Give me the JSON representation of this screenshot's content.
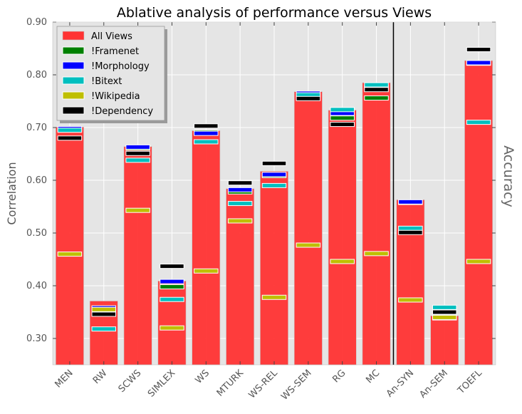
{
  "chart_data": {
    "type": "bar",
    "title": "Ablative analysis of performance versus Views",
    "ylabel": "Correlation",
    "ylabel_right": "Accuracy",
    "xlabel": "",
    "ylim": [
      0.25,
      0.9
    ],
    "yticks": [
      0.3,
      0.4,
      0.5,
      0.6,
      0.7,
      0.8,
      0.9
    ],
    "ytick_labels": [
      "0.30",
      "0.40",
      "0.50",
      "0.60",
      "0.70",
      "0.80",
      "0.90"
    ],
    "grid": true,
    "legend_position": "top-left",
    "separator_after": "MC",
    "categories": [
      "MEN",
      "RW",
      "SCWS",
      "SIMLEX",
      "WS",
      "MTURK",
      "WS-REL",
      "WS-SEM",
      "RG",
      "MC",
      "An-SYN",
      "An-SEM",
      "TOEFL"
    ],
    "bar_series": {
      "name": "All Views",
      "color": "#ff3333",
      "values": [
        0.701,
        0.371,
        0.664,
        0.409,
        0.694,
        0.584,
        0.617,
        0.768,
        0.733,
        0.785,
        0.563,
        0.343,
        0.827
      ]
    },
    "marker_series": [
      {
        "name": "!Framenet",
        "color": "#008000",
        "values": [
          0.697,
          0.357,
          0.661,
          0.398,
          0.691,
          0.578,
          0.609,
          0.762,
          0.718,
          0.756,
          0.558,
          0.34,
          0.822
        ]
      },
      {
        "name": "!Morphology",
        "color": "#0000ff",
        "values": [
          0.698,
          0.358,
          0.663,
          0.408,
          0.689,
          0.582,
          0.611,
          0.765,
          0.727,
          0.776,
          0.559,
          0.339,
          0.823
        ]
      },
      {
        "name": "!Bitext",
        "color": "#00bfbf",
        "values": [
          0.695,
          0.318,
          0.638,
          0.374,
          0.673,
          0.556,
          0.59,
          0.762,
          0.734,
          0.781,
          0.509,
          0.359,
          0.71
        ]
      },
      {
        "name": "!Wikipedia",
        "color": "#bfbf00",
        "values": [
          0.46,
          0.355,
          0.543,
          0.32,
          0.428,
          0.523,
          0.378,
          0.477,
          0.446,
          0.461,
          0.373,
          0.34,
          0.446
        ]
      },
      {
        "name": "!Dependency",
        "color": "#000000",
        "values": [
          0.68,
          0.346,
          0.651,
          0.437,
          0.703,
          0.595,
          0.632,
          0.755,
          0.706,
          0.772,
          0.501,
          0.35,
          0.848
        ]
      }
    ]
  }
}
